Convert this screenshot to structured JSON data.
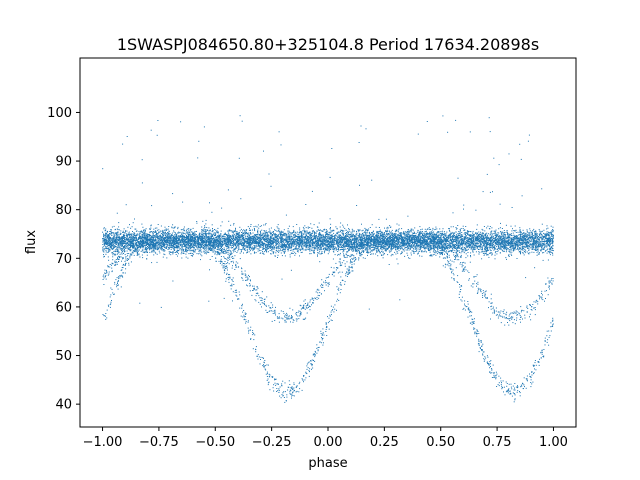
{
  "chart_data": {
    "type": "scatter",
    "title": "1SWASPJ084650.80+325104.8 Period 17634.20898s",
    "xlabel": "phase",
    "ylabel": "flux",
    "xlim": [
      -1.1,
      1.1
    ],
    "ylim": [
      35.3,
      111.2
    ],
    "xticks": [
      -1.0,
      -0.75,
      -0.5,
      -0.25,
      0.0,
      0.25,
      0.5,
      0.75,
      1.0
    ],
    "xtick_labels": [
      "−1.00",
      "−0.75",
      "−0.50",
      "−0.25",
      "0.00",
      "0.25",
      "0.50",
      "0.75",
      "1.00"
    ],
    "yticks": [
      40,
      50,
      60,
      70,
      80,
      90,
      100
    ],
    "ytick_labels": [
      "40",
      "50",
      "60",
      "70",
      "80",
      "90",
      "100"
    ],
    "grid": false,
    "marker_color": "#1f77b4",
    "series_summary": {
      "baseline_flux": 73.5,
      "baseline_scatter": 1.2,
      "primary_eclipse": {
        "center_phase": -0.18,
        "min_flux": 42.5,
        "width_phase": 0.38
      },
      "secondary_eclipse": {
        "center_phase": -0.18,
        "min_flux": 57.8,
        "width_phase": 0.36
      },
      "phase_repeat": 1.0,
      "n_points_approx": 12000
    }
  }
}
